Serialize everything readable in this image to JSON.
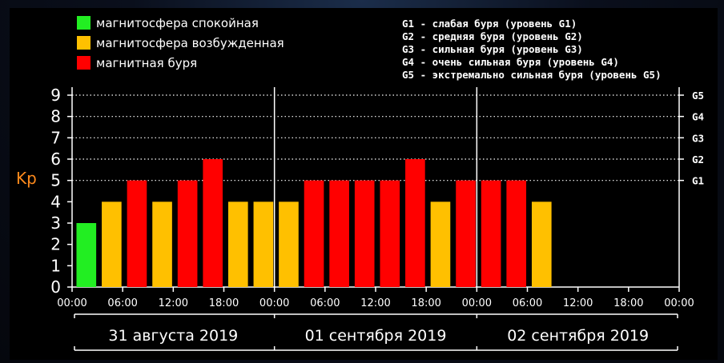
{
  "chart_data": {
    "type": "bar",
    "ylabel": "Kp",
    "ylim": [
      0,
      9
    ],
    "yticks": [
      "0",
      "1",
      "2",
      "3",
      "4",
      "5",
      "6",
      "7",
      "8",
      "9"
    ],
    "storm_levels": [
      "G1",
      "G2",
      "G3",
      "G4",
      "G5"
    ],
    "storm_level_kp": [
      5,
      6,
      7,
      8,
      9
    ],
    "xticks": [
      "00:00",
      "06:00",
      "12:00",
      "18:00",
      "00:00",
      "06:00",
      "12:00",
      "18:00",
      "00:00",
      "06:00",
      "12:00",
      "18:00",
      "00:00"
    ],
    "days": [
      "31 августа 2019",
      "01 сентября 2019",
      "02 сентября 2019"
    ],
    "bar_interval_hours": 3,
    "values": [
      3,
      4,
      5,
      4,
      5,
      6,
      4,
      4,
      4,
      5,
      5,
      5,
      5,
      6,
      4,
      5,
      5,
      5,
      4
    ],
    "statuses": [
      "quiet",
      "excited",
      "storm",
      "excited",
      "storm",
      "storm",
      "excited",
      "excited",
      "excited",
      "storm",
      "storm",
      "storm",
      "storm",
      "storm",
      "excited",
      "storm",
      "storm",
      "storm",
      "excited"
    ],
    "grid": "dotted at Kp 5-9"
  },
  "legend": {
    "items": [
      {
        "key": "quiet",
        "label": "магнитосфера спокойная",
        "color": "#22ee22"
      },
      {
        "key": "excited",
        "label": "магнитосфера возбужденная",
        "color": "#ffc000"
      },
      {
        "key": "storm",
        "label": "магнитная буря",
        "color": "#ff0000"
      }
    ],
    "storm_items": [
      "G1 - слабая буря (уровень G1)",
      "G2 - средняя буря (уровень G2)",
      "G3 - сильная буря (уровень G3)",
      "G4 - очень сильная буря (уровень G4)",
      "G5 - экстремально сильная буря (уровень G5)"
    ]
  }
}
